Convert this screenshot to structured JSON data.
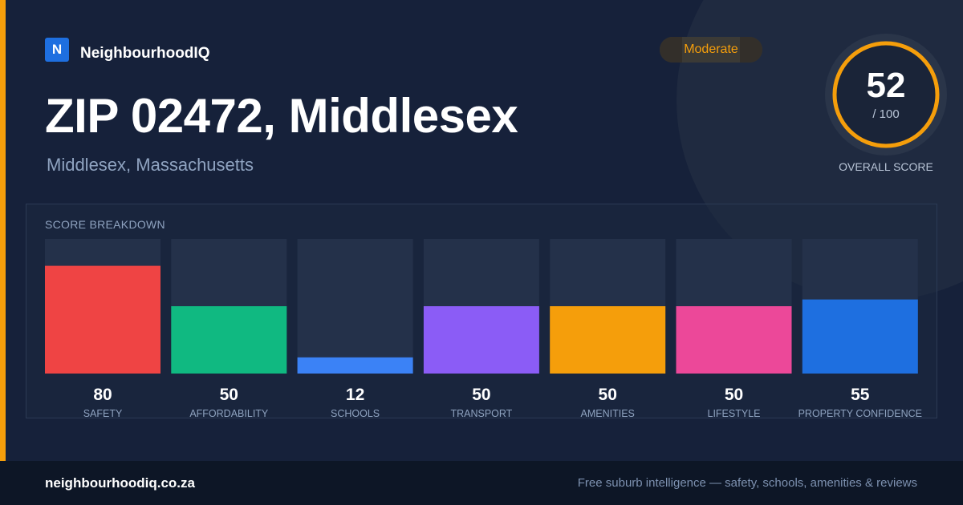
{
  "brand": {
    "logo_letter": "N",
    "name": "NeighbourhoodIQ",
    "accent_color": "#1e6fe0"
  },
  "header": {
    "title": "ZIP 02472, Middlesex",
    "subtitle": "Middlesex, Massachusetts",
    "badge": "Moderate",
    "badge_color": "#f59e0b"
  },
  "score": {
    "value": "52",
    "max_label": "/ 100",
    "label": "OVERALL SCORE",
    "fraction": 0.52,
    "ring_color": "#f59e0b"
  },
  "breakdown": {
    "title": "SCORE BREAKDOWN"
  },
  "chart_data": {
    "type": "bar",
    "categories": [
      "SAFETY",
      "AFFORDABILITY",
      "SCHOOLS",
      "TRANSPORT",
      "AMENITIES",
      "LIFESTYLE",
      "PROPERTY CONFIDENCE"
    ],
    "values": [
      80,
      50,
      12,
      50,
      50,
      50,
      55
    ],
    "colors": [
      "#ef4444",
      "#10b981",
      "#3b82f6",
      "#8b5cf6",
      "#f59e0b",
      "#ec4899",
      "#1e6fe0"
    ],
    "ylim": [
      0,
      100
    ],
    "grid": false
  },
  "footer": {
    "url": "neighbourhoodiq.co.za",
    "tagline": "Free suburb intelligence — safety, schools, amenities & reviews"
  }
}
